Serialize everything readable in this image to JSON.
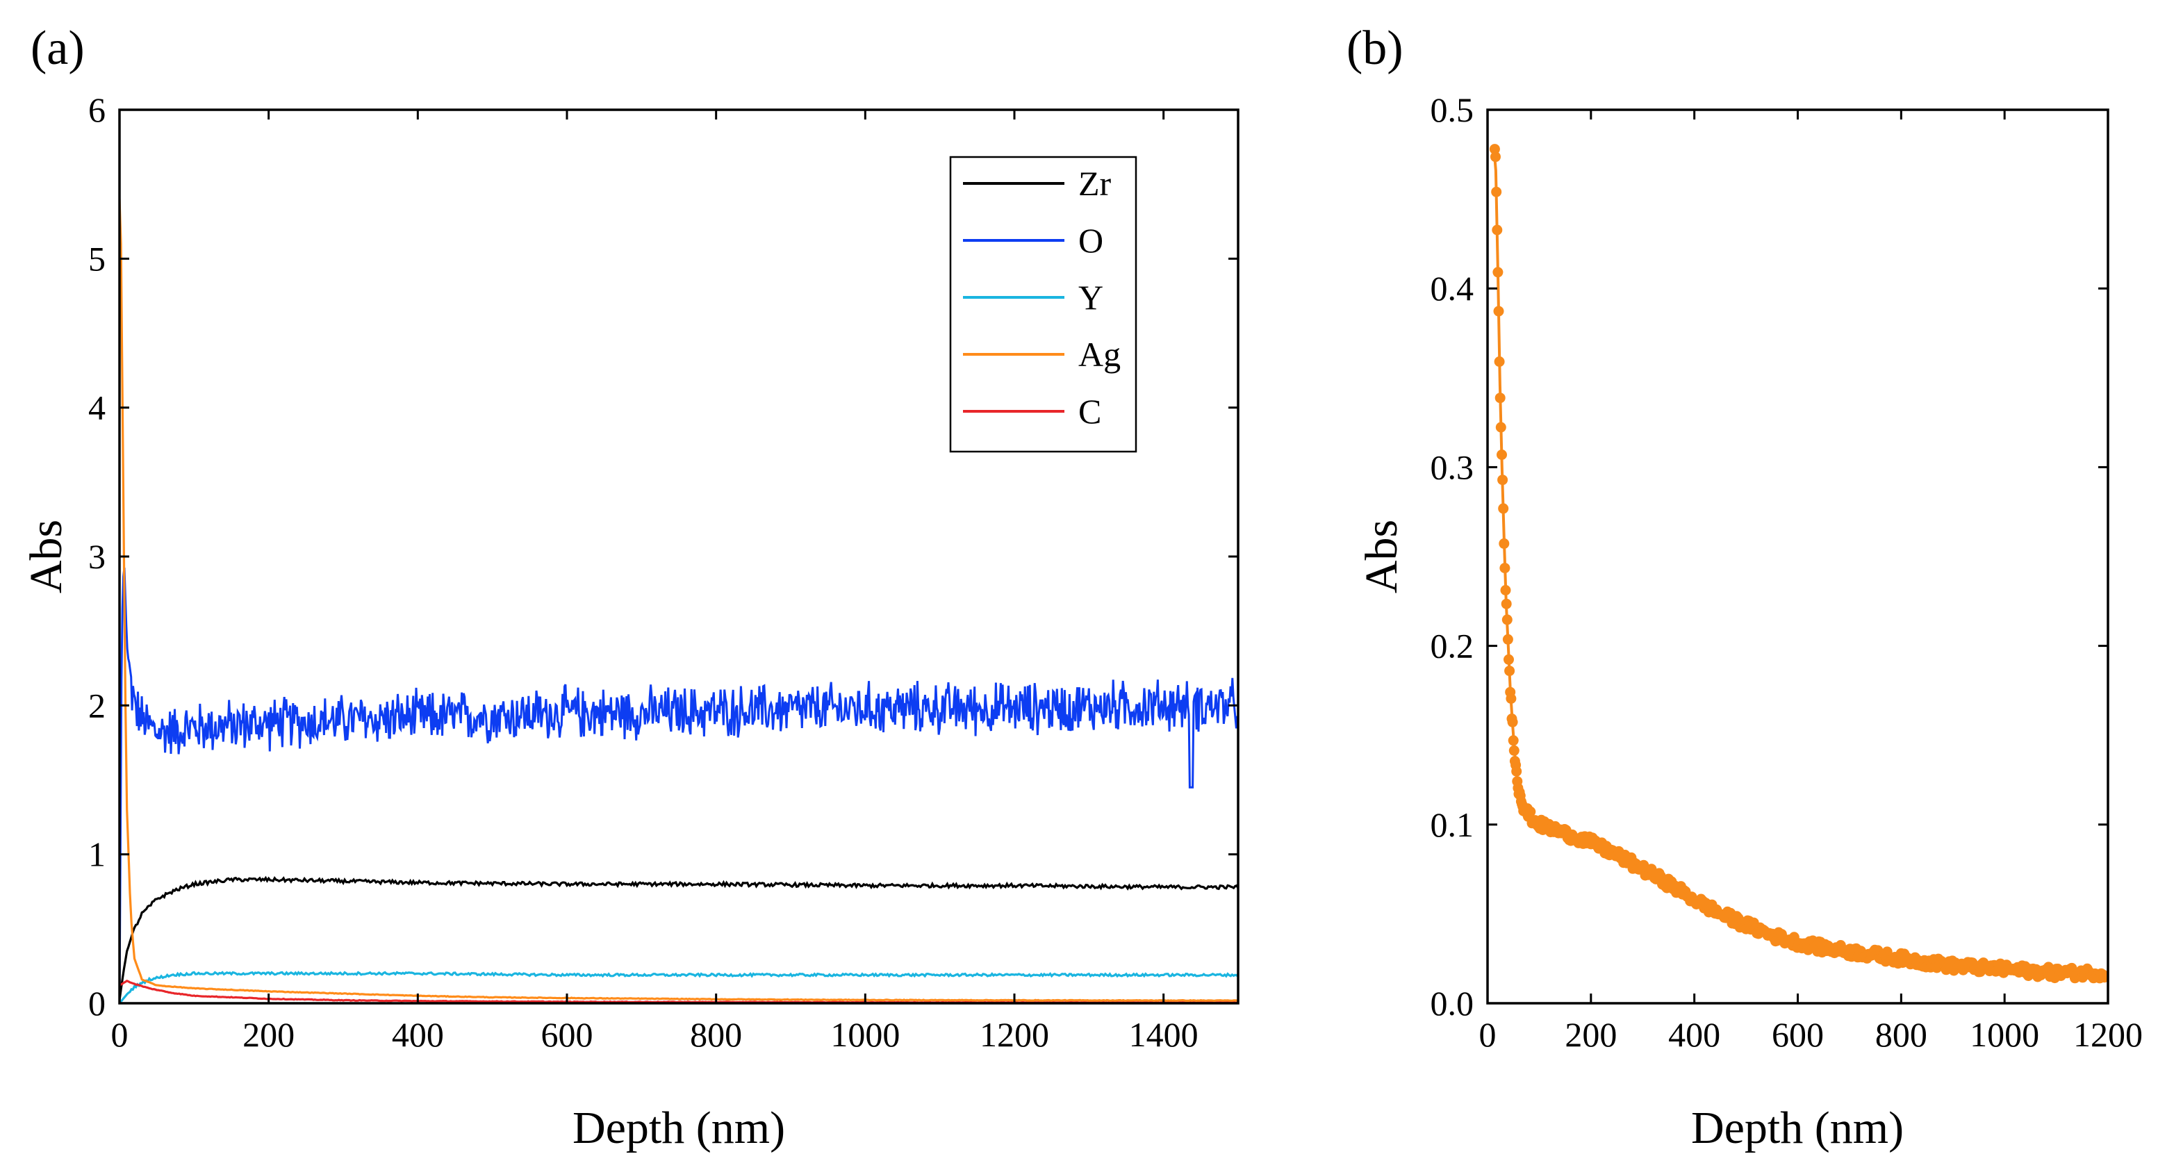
{
  "chart_data": [
    {
      "panel": "(a)",
      "type": "line",
      "xlabel": "Depth (nm)",
      "ylabel": "Abs",
      "xlim": [
        0,
        1500
      ],
      "ylim": [
        0,
        6
      ],
      "xticks": [
        0,
        200,
        400,
        600,
        800,
        1000,
        1200,
        1400
      ],
      "yticks": [
        0,
        1,
        2,
        3,
        4,
        5,
        6
      ],
      "legend_position": "top-right",
      "series": [
        {
          "name": "Zr",
          "color": "#000000",
          "x": [
            0,
            5,
            10,
            20,
            30,
            50,
            75,
            100,
            150,
            200,
            300,
            400,
            600,
            800,
            1000,
            1200,
            1400,
            1500
          ],
          "y": [
            0.02,
            0.2,
            0.35,
            0.5,
            0.6,
            0.7,
            0.76,
            0.8,
            0.83,
            0.83,
            0.82,
            0.81,
            0.8,
            0.8,
            0.79,
            0.79,
            0.78,
            0.78
          ]
        },
        {
          "name": "O",
          "color": "#0d3df2",
          "x": [
            0,
            3,
            6,
            10,
            15,
            20,
            30,
            50,
            100,
            200,
            300,
            400,
            500,
            600,
            700,
            800,
            900,
            1000,
            1100,
            1200,
            1300,
            1400,
            1500
          ],
          "y": [
            0.0,
            2.5,
            3.0,
            2.4,
            2.15,
            2.0,
            1.9,
            1.82,
            1.85,
            1.88,
            1.9,
            1.92,
            1.93,
            1.95,
            1.95,
            1.96,
            1.97,
            1.98,
            1.98,
            1.98,
            1.99,
            2.0,
            2.0
          ]
        },
        {
          "name": "Y",
          "color": "#1ab5e0",
          "x": [
            0,
            10,
            20,
            40,
            70,
            100,
            150,
            200,
            400,
            600,
            800,
            1000,
            1200,
            1500
          ],
          "y": [
            0.0,
            0.06,
            0.11,
            0.16,
            0.19,
            0.2,
            0.2,
            0.2,
            0.2,
            0.19,
            0.19,
            0.19,
            0.19,
            0.19
          ]
        },
        {
          "name": "Ag",
          "color": "#ff8c1a",
          "x": [
            0,
            2,
            5,
            8,
            10,
            15,
            20,
            30,
            50,
            75,
            100,
            150,
            200,
            300,
            400,
            500,
            600,
            800,
            1000,
            1200,
            1500
          ],
          "y": [
            5.4,
            5.1,
            3.5,
            2.0,
            1.3,
            0.6,
            0.3,
            0.16,
            0.12,
            0.11,
            0.1,
            0.09,
            0.08,
            0.065,
            0.05,
            0.04,
            0.035,
            0.027,
            0.022,
            0.02,
            0.018
          ]
        },
        {
          "name": "C",
          "color": "#e8262a",
          "x": [
            0,
            10,
            20,
            40,
            70,
            100,
            200,
            300,
            400,
            600,
            800,
            1000,
            1200,
            1500
          ],
          "y": [
            0.12,
            0.15,
            0.13,
            0.1,
            0.07,
            0.05,
            0.03,
            0.02,
            0.015,
            0.01,
            0.008,
            0.007,
            0.006,
            0.005
          ]
        }
      ]
    },
    {
      "panel": "(b)",
      "type": "scatter",
      "xlabel": "Depth (nm)",
      "ylabel": "Abs",
      "xlim": [
        0,
        1200
      ],
      "ylim": [
        0,
        0.5
      ],
      "xticks": [
        0,
        200,
        400,
        600,
        800,
        1000,
        1200
      ],
      "yticks": [
        "0.0",
        "0.1",
        "0.2",
        "0.3",
        "0.4",
        "0.5"
      ],
      "series": [
        {
          "name": "Ag",
          "color": "#f78a1a",
          "x": [
            15,
            20,
            25,
            30,
            35,
            40,
            45,
            50,
            55,
            60,
            70,
            80,
            100,
            150,
            200,
            250,
            300,
            350,
            400,
            450,
            500,
            550,
            600,
            650,
            700,
            750,
            800,
            850,
            900,
            950,
            1000,
            1050,
            1100,
            1150,
            1200
          ],
          "y": [
            0.48,
            0.41,
            0.33,
            0.28,
            0.23,
            0.2,
            0.17,
            0.15,
            0.13,
            0.12,
            0.11,
            0.105,
            0.1,
            0.095,
            0.09,
            0.083,
            0.075,
            0.067,
            0.058,
            0.05,
            0.044,
            0.038,
            0.034,
            0.031,
            0.029,
            0.027,
            0.025,
            0.023,
            0.021,
            0.02,
            0.019,
            0.018,
            0.017,
            0.017,
            0.017
          ]
        }
      ]
    }
  ]
}
